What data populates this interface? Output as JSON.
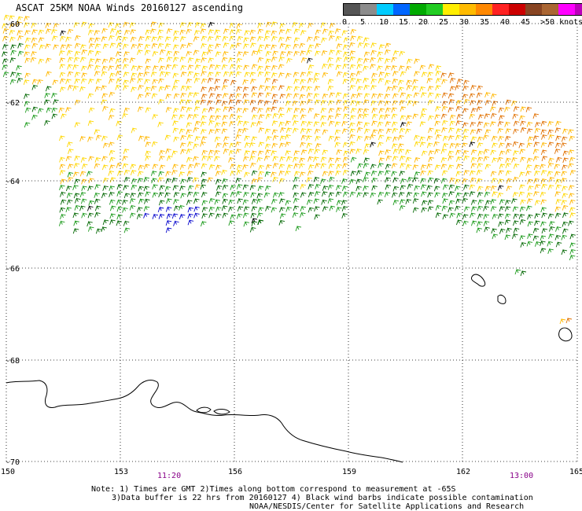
{
  "title": "ASCAT 25KM NOAA Winds 20160127 ascending",
  "legend": {
    "colors": [
      "#555555",
      "#8c8c8c",
      "#00ccff",
      "#0066ff",
      "#00aa00",
      "#22cc22",
      "#ffee00",
      "#ffbb00",
      "#ff8800",
      "#ff2222",
      "#cc0000",
      "#884422",
      "#aa6633",
      "#ff00ff",
      "#bb00bb",
      "#6600cc"
    ],
    "labels": [
      "0",
      "5",
      "10",
      "15",
      "20",
      "25",
      "30",
      "35",
      "40",
      "45",
      ">50 knots"
    ]
  },
  "map": {
    "lat_labels": [
      "-60",
      "-62",
      "-64",
      "-66",
      "-68",
      "-70"
    ],
    "lon_labels": [
      "150",
      "153",
      "156",
      "159",
      "162",
      "165"
    ],
    "time_labels": [
      "11:20",
      "13:00"
    ],
    "time_color": "#880088",
    "grid_style": "dotted",
    "coastline_color": "#000000",
    "barb_colors": {
      "light": "#ffd700",
      "moderate": "#ffb700",
      "strong": "#e07000",
      "green": "#1a9a1a",
      "dark_green": "#006600",
      "blue": "#0000cc",
      "contaminated": "#000000"
    }
  },
  "notes": {
    "line1": "Note: 1) Times are GMT 2)Times along bottom correspond to measurement at -65S",
    "line2": "3)Data buffer is 22 hrs from 20160127 4) Black wind barbs indicate possible contamination",
    "line3": "NOAA/NESDIS/Center for Satellite Applications and Research"
  }
}
